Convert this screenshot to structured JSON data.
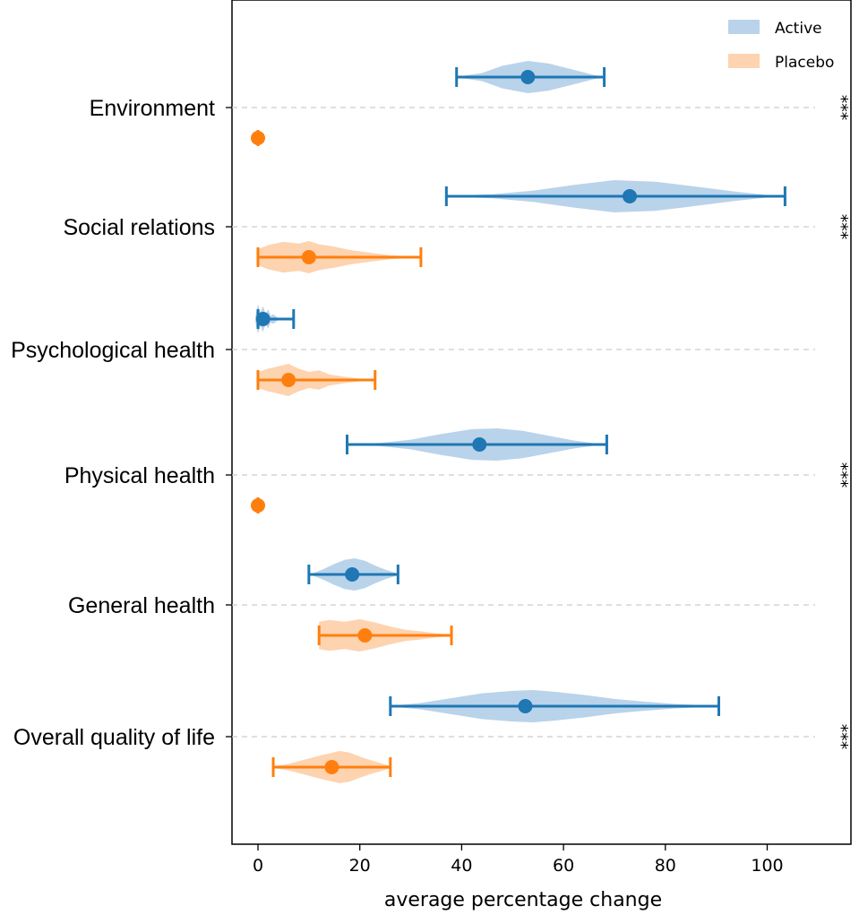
{
  "colors": {
    "active": "#1f77b4",
    "active_fill": "#b9d3ea",
    "placebo": "#ff7f0e",
    "placebo_fill": "#fdd3b0",
    "gridline": "#cccccc"
  },
  "chart_data": {
    "type": "violin",
    "orientation": "horizontal",
    "title": "",
    "xlabel": "average percentage change",
    "ylabel": "",
    "xlim": [
      -5,
      115
    ],
    "xticks": [
      0,
      20,
      40,
      60,
      80,
      100
    ],
    "grid": "horizontal dashed at category centers",
    "legend_position": "top-right",
    "legend": [
      {
        "key": "active",
        "label": "Active"
      },
      {
        "key": "placebo",
        "label": "Placebo"
      }
    ],
    "categories": [
      {
        "label": "Environment",
        "significance": "***",
        "active": {
          "mean": 53,
          "min": 39,
          "max": 68,
          "violin": [
            [
              39,
              0.02
            ],
            [
              44,
              0.25
            ],
            [
              48,
              0.7
            ],
            [
              53,
              1.0
            ],
            [
              57,
              0.85
            ],
            [
              62,
              0.45
            ],
            [
              66,
              0.12
            ],
            [
              68,
              0.02
            ]
          ]
        },
        "placebo": {
          "mean": 0,
          "min": 0,
          "max": 0,
          "violin": []
        }
      },
      {
        "label": "Social relations",
        "significance": "***",
        "active": {
          "mean": 73,
          "min": 37,
          "max": 103.5,
          "violin": [
            [
              37,
              0.02
            ],
            [
              46,
              0.12
            ],
            [
              54,
              0.35
            ],
            [
              62,
              0.7
            ],
            [
              70,
              1.0
            ],
            [
              78,
              0.9
            ],
            [
              86,
              0.6
            ],
            [
              94,
              0.28
            ],
            [
              100,
              0.08
            ],
            [
              103.5,
              0.02
            ]
          ]
        },
        "placebo": {
          "mean": 10,
          "min": 0,
          "max": 32,
          "violin": [
            [
              0,
              0.5
            ],
            [
              2,
              0.75
            ],
            [
              5,
              0.95
            ],
            [
              8,
              0.85
            ],
            [
              10,
              1.0
            ],
            [
              12,
              0.8
            ],
            [
              15,
              0.65
            ],
            [
              18,
              0.45
            ],
            [
              22,
              0.28
            ],
            [
              26,
              0.12
            ],
            [
              30,
              0.04
            ],
            [
              32,
              0.02
            ]
          ]
        }
      },
      {
        "label": "Psychological health",
        "significance": "",
        "active": {
          "mean": 1,
          "min": 0,
          "max": 7,
          "violin": [
            [
              -0.5,
              0.2
            ],
            [
              0,
              0.9
            ],
            [
              0.5,
              0.4
            ],
            [
              1,
              0.8
            ],
            [
              1.5,
              0.3
            ],
            [
              2,
              0.6
            ],
            [
              2.5,
              0.2
            ],
            [
              3,
              0.3
            ],
            [
              4,
              0.05
            ],
            [
              7,
              0.0
            ]
          ]
        },
        "placebo": {
          "mean": 6,
          "min": 0,
          "max": 23,
          "violin": [
            [
              0,
              0.5
            ],
            [
              2,
              0.7
            ],
            [
              4,
              0.85
            ],
            [
              6,
              1.0
            ],
            [
              8,
              0.7
            ],
            [
              10,
              0.5
            ],
            [
              12,
              0.6
            ],
            [
              14,
              0.35
            ],
            [
              17,
              0.2
            ],
            [
              20,
              0.08
            ],
            [
              23,
              0.02
            ]
          ]
        }
      },
      {
        "label": "Physical health",
        "significance": "***",
        "active": {
          "mean": 43.5,
          "min": 17.5,
          "max": 68.5,
          "violin": [
            [
              17.5,
              0.02
            ],
            [
              24,
              0.1
            ],
            [
              30,
              0.3
            ],
            [
              36,
              0.65
            ],
            [
              42,
              0.95
            ],
            [
              47,
              1.0
            ],
            [
              52,
              0.85
            ],
            [
              57,
              0.55
            ],
            [
              62,
              0.25
            ],
            [
              66,
              0.08
            ],
            [
              68.5,
              0.02
            ]
          ]
        },
        "placebo": {
          "mean": 0,
          "min": 0,
          "max": 0,
          "violin": []
        }
      },
      {
        "label": "General health",
        "significance": "",
        "active": {
          "mean": 18.5,
          "min": 10,
          "max": 27.5,
          "violin": [
            [
              11,
              0.1
            ],
            [
              13,
              0.35
            ],
            [
              15,
              0.65
            ],
            [
              17,
              0.9
            ],
            [
              19,
              1.0
            ],
            [
              21,
              0.85
            ],
            [
              23,
              0.55
            ],
            [
              25,
              0.3
            ],
            [
              27,
              0.1
            ]
          ]
        },
        "placebo": {
          "mean": 21,
          "min": 12,
          "max": 38,
          "violin": [
            [
              12,
              0.85
            ],
            [
              14,
              0.95
            ],
            [
              17,
              0.85
            ],
            [
              20,
              1.0
            ],
            [
              23,
              0.8
            ],
            [
              26,
              0.55
            ],
            [
              29,
              0.35
            ],
            [
              32,
              0.25
            ],
            [
              35,
              0.12
            ],
            [
              38,
              0.04
            ]
          ]
        }
      },
      {
        "label": "Overall quality of life",
        "significance": "***",
        "active": {
          "mean": 52.5,
          "min": 26,
          "max": 90.5,
          "violin": [
            [
              26,
              0.02
            ],
            [
              32,
              0.2
            ],
            [
              38,
              0.5
            ],
            [
              44,
              0.8
            ],
            [
              50,
              0.95
            ],
            [
              54,
              1.0
            ],
            [
              58,
              0.9
            ],
            [
              64,
              0.7
            ],
            [
              70,
              0.45
            ],
            [
              76,
              0.28
            ],
            [
              82,
              0.14
            ],
            [
              88,
              0.05
            ],
            [
              90.5,
              0.02
            ]
          ]
        },
        "placebo": {
          "mean": 14.5,
          "min": 3,
          "max": 26,
          "violin": [
            [
              3,
              0.05
            ],
            [
              6,
              0.2
            ],
            [
              9,
              0.45
            ],
            [
              12,
              0.7
            ],
            [
              14,
              0.85
            ],
            [
              16,
              1.0
            ],
            [
              18,
              0.9
            ],
            [
              20,
              0.65
            ],
            [
              23,
              0.35
            ],
            [
              26,
              0.08
            ]
          ]
        }
      }
    ]
  }
}
